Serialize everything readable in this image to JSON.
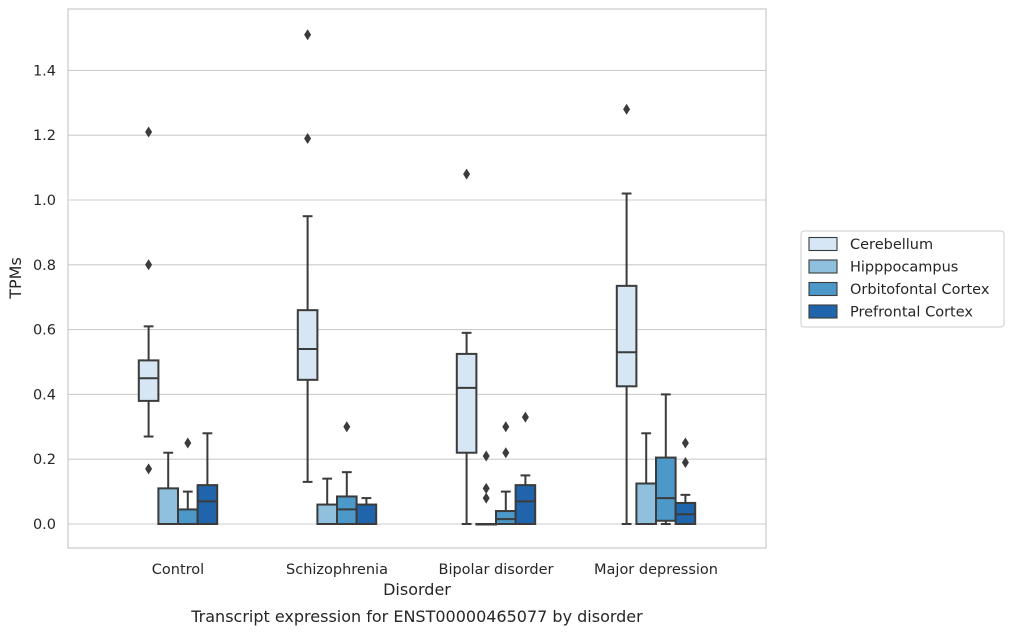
{
  "chart_data": {
    "type": "box",
    "title": "Transcript expression for ENST00000465077 by disorder",
    "xlabel": "Disorder",
    "ylabel": "TPMs",
    "ylim": [
      -0.075,
      1.585
    ],
    "yticks": [
      "0.0",
      "0.2",
      "0.4",
      "0.6",
      "0.8",
      "1.0",
      "1.2",
      "1.4"
    ],
    "categories": [
      "Control",
      "Schizophrenia",
      "Bipolar disorder",
      "Major depression"
    ],
    "grid": true,
    "legend_position": "right",
    "series": [
      {
        "name": "Cerebellum",
        "color": "#d6e6f4",
        "boxes": [
          {
            "q1": 0.38,
            "median": 0.45,
            "q3": 0.505,
            "whisker_low": 0.27,
            "whisker_high": 0.61,
            "outliers": [
              1.21,
              0.8,
              0.17
            ]
          },
          {
            "q1": 0.445,
            "median": 0.54,
            "q3": 0.66,
            "whisker_low": 0.13,
            "whisker_high": 0.95,
            "outliers": [
              1.51,
              1.19
            ]
          },
          {
            "q1": 0.22,
            "median": 0.42,
            "q3": 0.525,
            "whisker_low": 0.0,
            "whisker_high": 0.59,
            "outliers": [
              1.08
            ]
          },
          {
            "q1": 0.425,
            "median": 0.53,
            "q3": 0.735,
            "whisker_low": 0.0,
            "whisker_high": 1.02,
            "outliers": [
              1.28
            ]
          }
        ]
      },
      {
        "name": "Hipppocampus",
        "color": "#8fc1de",
        "boxes": [
          {
            "q1": 0.0,
            "median": 0.0,
            "q3": 0.11,
            "whisker_low": 0.0,
            "whisker_high": 0.22,
            "outliers": []
          },
          {
            "q1": 0.0,
            "median": 0.0,
            "q3": 0.06,
            "whisker_low": 0.0,
            "whisker_high": 0.14,
            "outliers": []
          },
          {
            "q1": 0.0,
            "median": 0.0,
            "q3": 0.0,
            "whisker_low": 0.0,
            "whisker_high": 0.0,
            "outliers": [
              0.21,
              0.11,
              0.08
            ]
          },
          {
            "q1": 0.0,
            "median": 0.0,
            "q3": 0.125,
            "whisker_low": 0.0,
            "whisker_high": 0.28,
            "outliers": []
          }
        ]
      },
      {
        "name": "Orbitofontal Cortex",
        "color": "#4b98c9",
        "boxes": [
          {
            "q1": 0.0,
            "median": 0.0,
            "q3": 0.045,
            "whisker_low": 0.0,
            "whisker_high": 0.1,
            "outliers": [
              0.25
            ]
          },
          {
            "q1": 0.0,
            "median": 0.045,
            "q3": 0.085,
            "whisker_low": 0.0,
            "whisker_high": 0.16,
            "outliers": [
              0.3
            ]
          },
          {
            "q1": 0.0,
            "median": 0.015,
            "q3": 0.04,
            "whisker_low": 0.0,
            "whisker_high": 0.1,
            "outliers": [
              0.3,
              0.22
            ]
          },
          {
            "q1": 0.01,
            "median": 0.08,
            "q3": 0.205,
            "whisker_low": 0.0,
            "whisker_high": 0.4,
            "outliers": []
          }
        ]
      },
      {
        "name": "Prefrontal Cortex",
        "color": "#2065ab",
        "boxes": [
          {
            "q1": 0.0,
            "median": 0.07,
            "q3": 0.12,
            "whisker_low": 0.0,
            "whisker_high": 0.28,
            "outliers": []
          },
          {
            "q1": 0.0,
            "median": 0.0,
            "q3": 0.06,
            "whisker_low": 0.0,
            "whisker_high": 0.08,
            "outliers": []
          },
          {
            "q1": 0.0,
            "median": 0.07,
            "q3": 0.12,
            "whisker_low": 0.0,
            "whisker_high": 0.15,
            "outliers": [
              0.33
            ]
          },
          {
            "q1": 0.0,
            "median": 0.03,
            "q3": 0.065,
            "whisker_low": 0.0,
            "whisker_high": 0.09,
            "outliers": [
              0.25,
              0.19
            ]
          }
        ]
      }
    ]
  }
}
